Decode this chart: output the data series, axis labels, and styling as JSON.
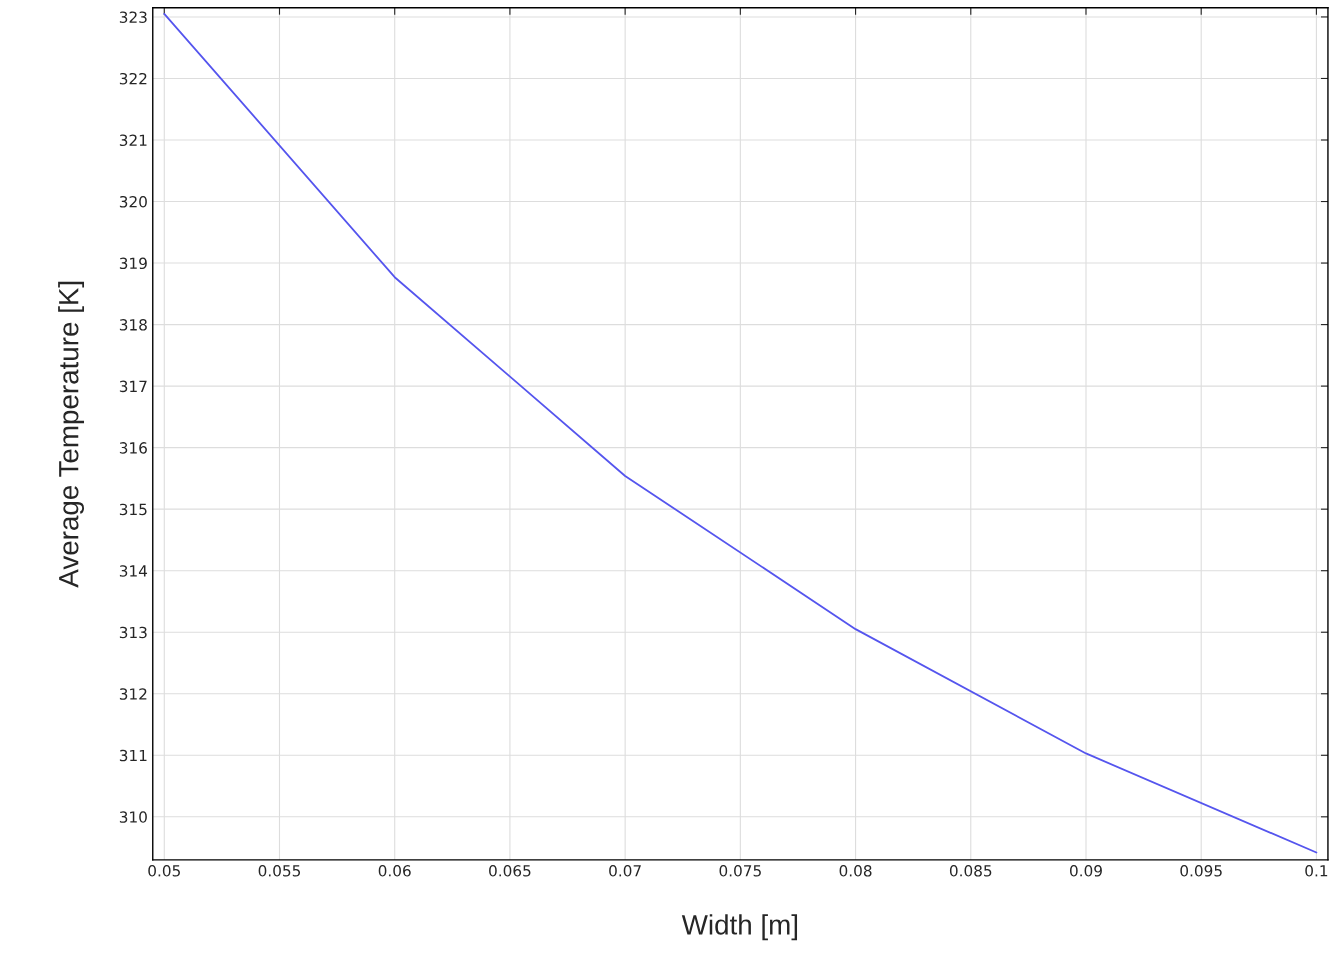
{
  "chart_data": {
    "type": "line",
    "xlabel": "Width [m]",
    "ylabel": "Average Temperature [K]",
    "x": [
      0.05,
      0.06,
      0.07,
      0.08,
      0.09,
      0.1
    ],
    "series": [
      {
        "color": "#5555ee",
        "values": [
          323.05,
          318.77,
          315.54,
          313.05,
          311.03,
          309.42
        ]
      }
    ],
    "xlim": [
      0.0495,
      0.1005
    ],
    "ylim": [
      309.3,
      323.15
    ],
    "xticks": [
      {
        "value": 0.05,
        "label": "0.05"
      },
      {
        "value": 0.055,
        "label": "0.055"
      },
      {
        "value": 0.06,
        "label": "0.06"
      },
      {
        "value": 0.065,
        "label": "0.065"
      },
      {
        "value": 0.07,
        "label": "0.07"
      },
      {
        "value": 0.075,
        "label": "0.075"
      },
      {
        "value": 0.08,
        "label": "0.08"
      },
      {
        "value": 0.085,
        "label": "0.085"
      },
      {
        "value": 0.09,
        "label": "0.09"
      },
      {
        "value": 0.095,
        "label": "0.095"
      },
      {
        "value": 0.1,
        "label": "0.1"
      }
    ],
    "yticks": [
      310,
      311,
      312,
      313,
      314,
      315,
      316,
      317,
      318,
      319,
      320,
      321,
      322,
      323
    ],
    "grid": true,
    "marker": "none",
    "line_style": "solid"
  }
}
